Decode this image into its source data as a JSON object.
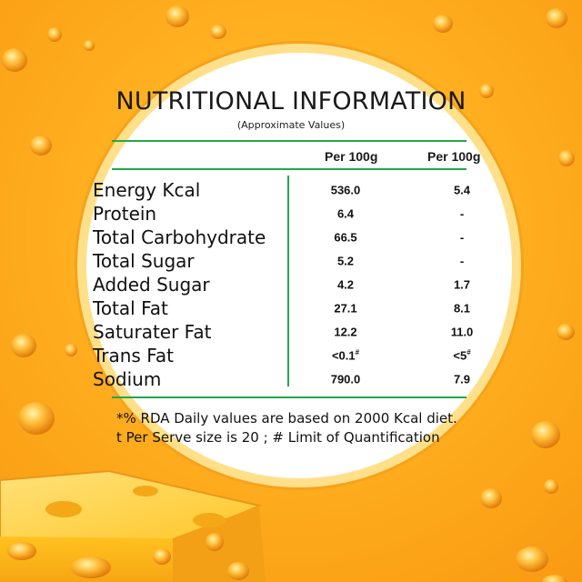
{
  "label": {
    "title": "NUTRITIONAL INFORMATION",
    "subtitle": "(Approximate Values)",
    "col1_header": "Per 100g",
    "col2_header": "Per 100g",
    "rows": [
      {
        "name": "Energy Kcal",
        "v1": "536.0",
        "v1_sup": "",
        "v2": "5.4",
        "v2_sup": ""
      },
      {
        "name": "Protein",
        "v1": "6.4",
        "v1_sup": "",
        "v2": "-",
        "v2_sup": ""
      },
      {
        "name": "Total Carbohydrate",
        "v1": "66.5",
        "v1_sup": "",
        "v2": "-",
        "v2_sup": ""
      },
      {
        "name": "Total Sugar",
        "v1": "5.2",
        "v1_sup": "",
        "v2": "-",
        "v2_sup": ""
      },
      {
        "name": "Added Sugar",
        "v1": "4.2",
        "v1_sup": "",
        "v2": "1.7",
        "v2_sup": ""
      },
      {
        "name": "Total Fat",
        "v1": "27.1",
        "v1_sup": "",
        "v2": "8.1",
        "v2_sup": ""
      },
      {
        "name": "Saturater Fat",
        "v1": "12.2",
        "v1_sup": "",
        "v2": "11.0",
        "v2_sup": ""
      },
      {
        "name": "Trans Fat",
        "v1": "<0.1",
        "v1_sup": "#",
        "v2": "<5",
        "v2_sup": "#"
      },
      {
        "name": "Sodium",
        "v1": "790.0",
        "v1_sup": "",
        "v2": "7.9",
        "v2_sup": ""
      }
    ],
    "footnote_1": "*% RDA Daily values are based on 2000 Kcal diet.",
    "footnote_2": "t Per Serve size is 20 ; # Limit of Quantification"
  },
  "colors": {
    "accent_line": "#22a84a",
    "background_orange": "#f99a12",
    "background_yellow": "#ffcc2e",
    "cheese": "#ffc21f"
  },
  "decor": {
    "cheese_block_icon": "cheese-block-icon",
    "bubble_icon": "cheese-hole-icon"
  }
}
